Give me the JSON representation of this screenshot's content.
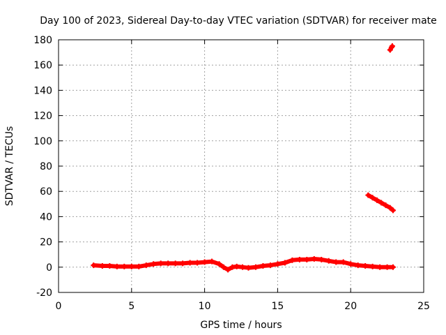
{
  "chart_data": {
    "type": "scatter",
    "title": "Day 100 of 2023, Sidereal Day-to-day VTEC variation (SDTVAR) for receiver mate",
    "xlabel": "GPS time / hours",
    "ylabel": "SDTVAR / TECUs",
    "xlim": [
      0,
      25
    ],
    "ylim": [
      -20,
      180
    ],
    "xticks": [
      0,
      5,
      10,
      15,
      20,
      25
    ],
    "yticks": [
      -20,
      0,
      20,
      40,
      60,
      80,
      100,
      120,
      140,
      160,
      180
    ],
    "grid": true,
    "point_color": "#ff0000",
    "series": [
      {
        "name": "main arc",
        "x": [
          2.4,
          3.0,
          3.5,
          4.0,
          4.5,
          5.0,
          5.5,
          6.0,
          6.5,
          7.0,
          7.5,
          8.0,
          8.5,
          9.0,
          9.5,
          10.0,
          10.5,
          11.0,
          11.3,
          11.6,
          11.9,
          12.2,
          12.6,
          13.0,
          13.5,
          14.0,
          14.5,
          15.0,
          15.5,
          16.0,
          16.5,
          17.0,
          17.5,
          18.0,
          18.5,
          19.0,
          19.5,
          20.0,
          20.5,
          21.0,
          21.5,
          22.0,
          22.5,
          22.9
        ],
        "y": [
          1.5,
          1.0,
          1.0,
          0.5,
          0.5,
          0.5,
          0.5,
          1.5,
          2.5,
          3.0,
          3.0,
          3.0,
          3.0,
          3.5,
          3.5,
          4.0,
          4.5,
          2.5,
          0.0,
          -2.0,
          0.0,
          0.5,
          0.0,
          -0.5,
          0.0,
          1.0,
          1.5,
          2.5,
          3.5,
          5.5,
          6.0,
          6.0,
          6.5,
          6.0,
          5.0,
          4.0,
          4.0,
          2.5,
          1.5,
          1.0,
          0.5,
          0.0,
          0.0,
          0.0
        ]
      },
      {
        "name": "rising arc",
        "x": [
          21.2,
          21.5,
          21.8,
          22.1,
          22.4,
          22.7,
          22.9
        ],
        "y": [
          57,
          55,
          53,
          51,
          49,
          47,
          45
        ]
      },
      {
        "name": "outlier",
        "x": [
          22.7,
          22.8,
          22.85
        ],
        "y": [
          172,
          174,
          175
        ]
      }
    ]
  }
}
